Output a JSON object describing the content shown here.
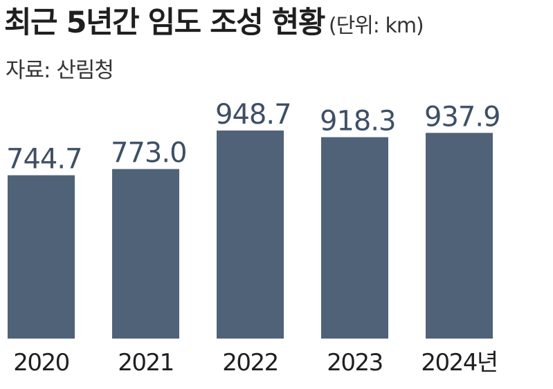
{
  "header": {
    "title": "최근 5년간 임도 조성 현황",
    "unit": "(단위: km)",
    "source": "자료: 산림청"
  },
  "colors": {
    "bar": "#506277",
    "value_text": "#3e4f65",
    "category_text": "#1f1f1f"
  },
  "chart_data": {
    "type": "bar",
    "title": "최근 5년간 임도 조성 현황",
    "unit": "(단위: km)",
    "categories": [
      "2020",
      "2021",
      "2022",
      "2023",
      "2024년"
    ],
    "values": [
      744.7,
      773.0,
      948.7,
      918.3,
      937.9
    ],
    "value_labels": [
      "744.7",
      "773.0",
      "948.7",
      "918.3",
      "937.9"
    ],
    "xlabel": "",
    "ylabel": "",
    "ylim": [
      0,
      1000
    ],
    "grid": false,
    "legend": "none"
  }
}
